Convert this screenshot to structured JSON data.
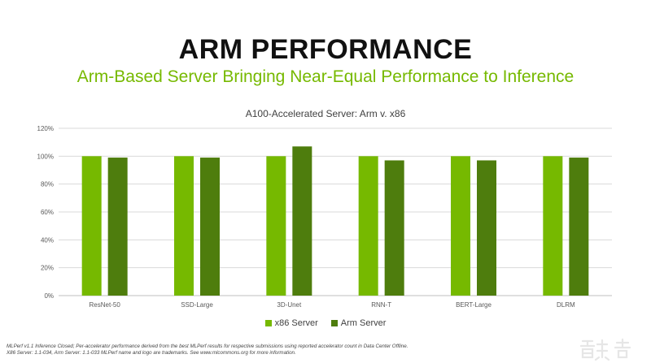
{
  "slide": {
    "title": "ARM PERFORMANCE",
    "subtitle": "Arm-Based Server Bringing Near-Equal Performance to Inference"
  },
  "colors": {
    "x86": "#76b900",
    "arm": "#4e7d0d",
    "axis_text": "#595959",
    "grid": "#d9d9d9"
  },
  "chart_data": {
    "type": "bar",
    "title": "A100-Accelerated Server: Arm v. x86",
    "categories": [
      "ResNet-50",
      "SSD-Large",
      "3D-Unet",
      "RNN-T",
      "BERT-Large",
      "DLRM"
    ],
    "series": [
      {
        "name": "x86 Server",
        "values": [
          100,
          100,
          100,
          100,
          100,
          100
        ]
      },
      {
        "name": "Arm Server",
        "values": [
          99,
          99,
          107,
          97,
          97,
          99
        ]
      }
    ],
    "ylim": [
      0,
      120
    ],
    "yticks": [
      0,
      20,
      40,
      60,
      80,
      100,
      120
    ],
    "ytick_labels": [
      "0%",
      "20%",
      "40%",
      "60%",
      "80%",
      "100%",
      "120%"
    ],
    "xlabel": "",
    "ylabel": "",
    "grid": true,
    "legend_position": "bottom"
  },
  "footnote": {
    "line1": "MLPerf v1.1 Inference Closed; Per-accelerator performance derived from the best MLPerf results for respective submissions using reported accelerator count in Data Center Offline.",
    "line2": "X86 Server:  1.1-034, Arm Server:  1.1-033 MLPerf name and logo are trademarks. See www.mlcommons.org for more information."
  },
  "watermark": {
    "icon": "zhidongxi-logo-icon"
  }
}
